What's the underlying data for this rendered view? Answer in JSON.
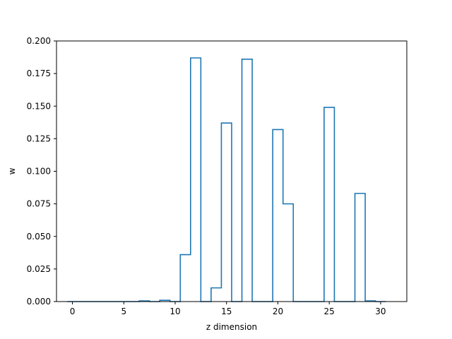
{
  "chart_data": {
    "type": "line",
    "style": "step",
    "xlabel": "z dimension",
    "ylabel": "w",
    "xlim": [
      -1.55,
      32.55
    ],
    "ylim": [
      0,
      0.2
    ],
    "xticks": [
      0,
      5,
      10,
      15,
      20,
      25,
      30
    ],
    "yticks": [
      0.0,
      0.025,
      0.05,
      0.075,
      0.1,
      0.125,
      0.15,
      0.175,
      0.2
    ],
    "ytick_labels": [
      "0.000",
      "0.025",
      "0.050",
      "0.075",
      "0.100",
      "0.125",
      "0.150",
      "0.175",
      "0.200"
    ],
    "grid": false,
    "color": "#1f77b4",
    "series": [
      {
        "x": [
          0,
          1,
          2,
          3,
          4,
          5,
          6,
          7,
          8,
          9,
          10,
          11,
          12,
          13,
          14,
          15,
          16,
          17,
          18,
          19,
          20,
          21,
          22,
          23,
          24,
          25,
          26,
          27,
          28,
          29,
          30
        ],
        "values": [
          0,
          0,
          0,
          0,
          0,
          0,
          0,
          0.0005,
          0,
          0.001,
          0,
          0.036,
          0.187,
          0,
          0.0105,
          0.137,
          0,
          0.186,
          0,
          0,
          0.132,
          0.075,
          0,
          0,
          0,
          0.149,
          0,
          0,
          0.083,
          0.0005,
          0
        ]
      }
    ]
  }
}
